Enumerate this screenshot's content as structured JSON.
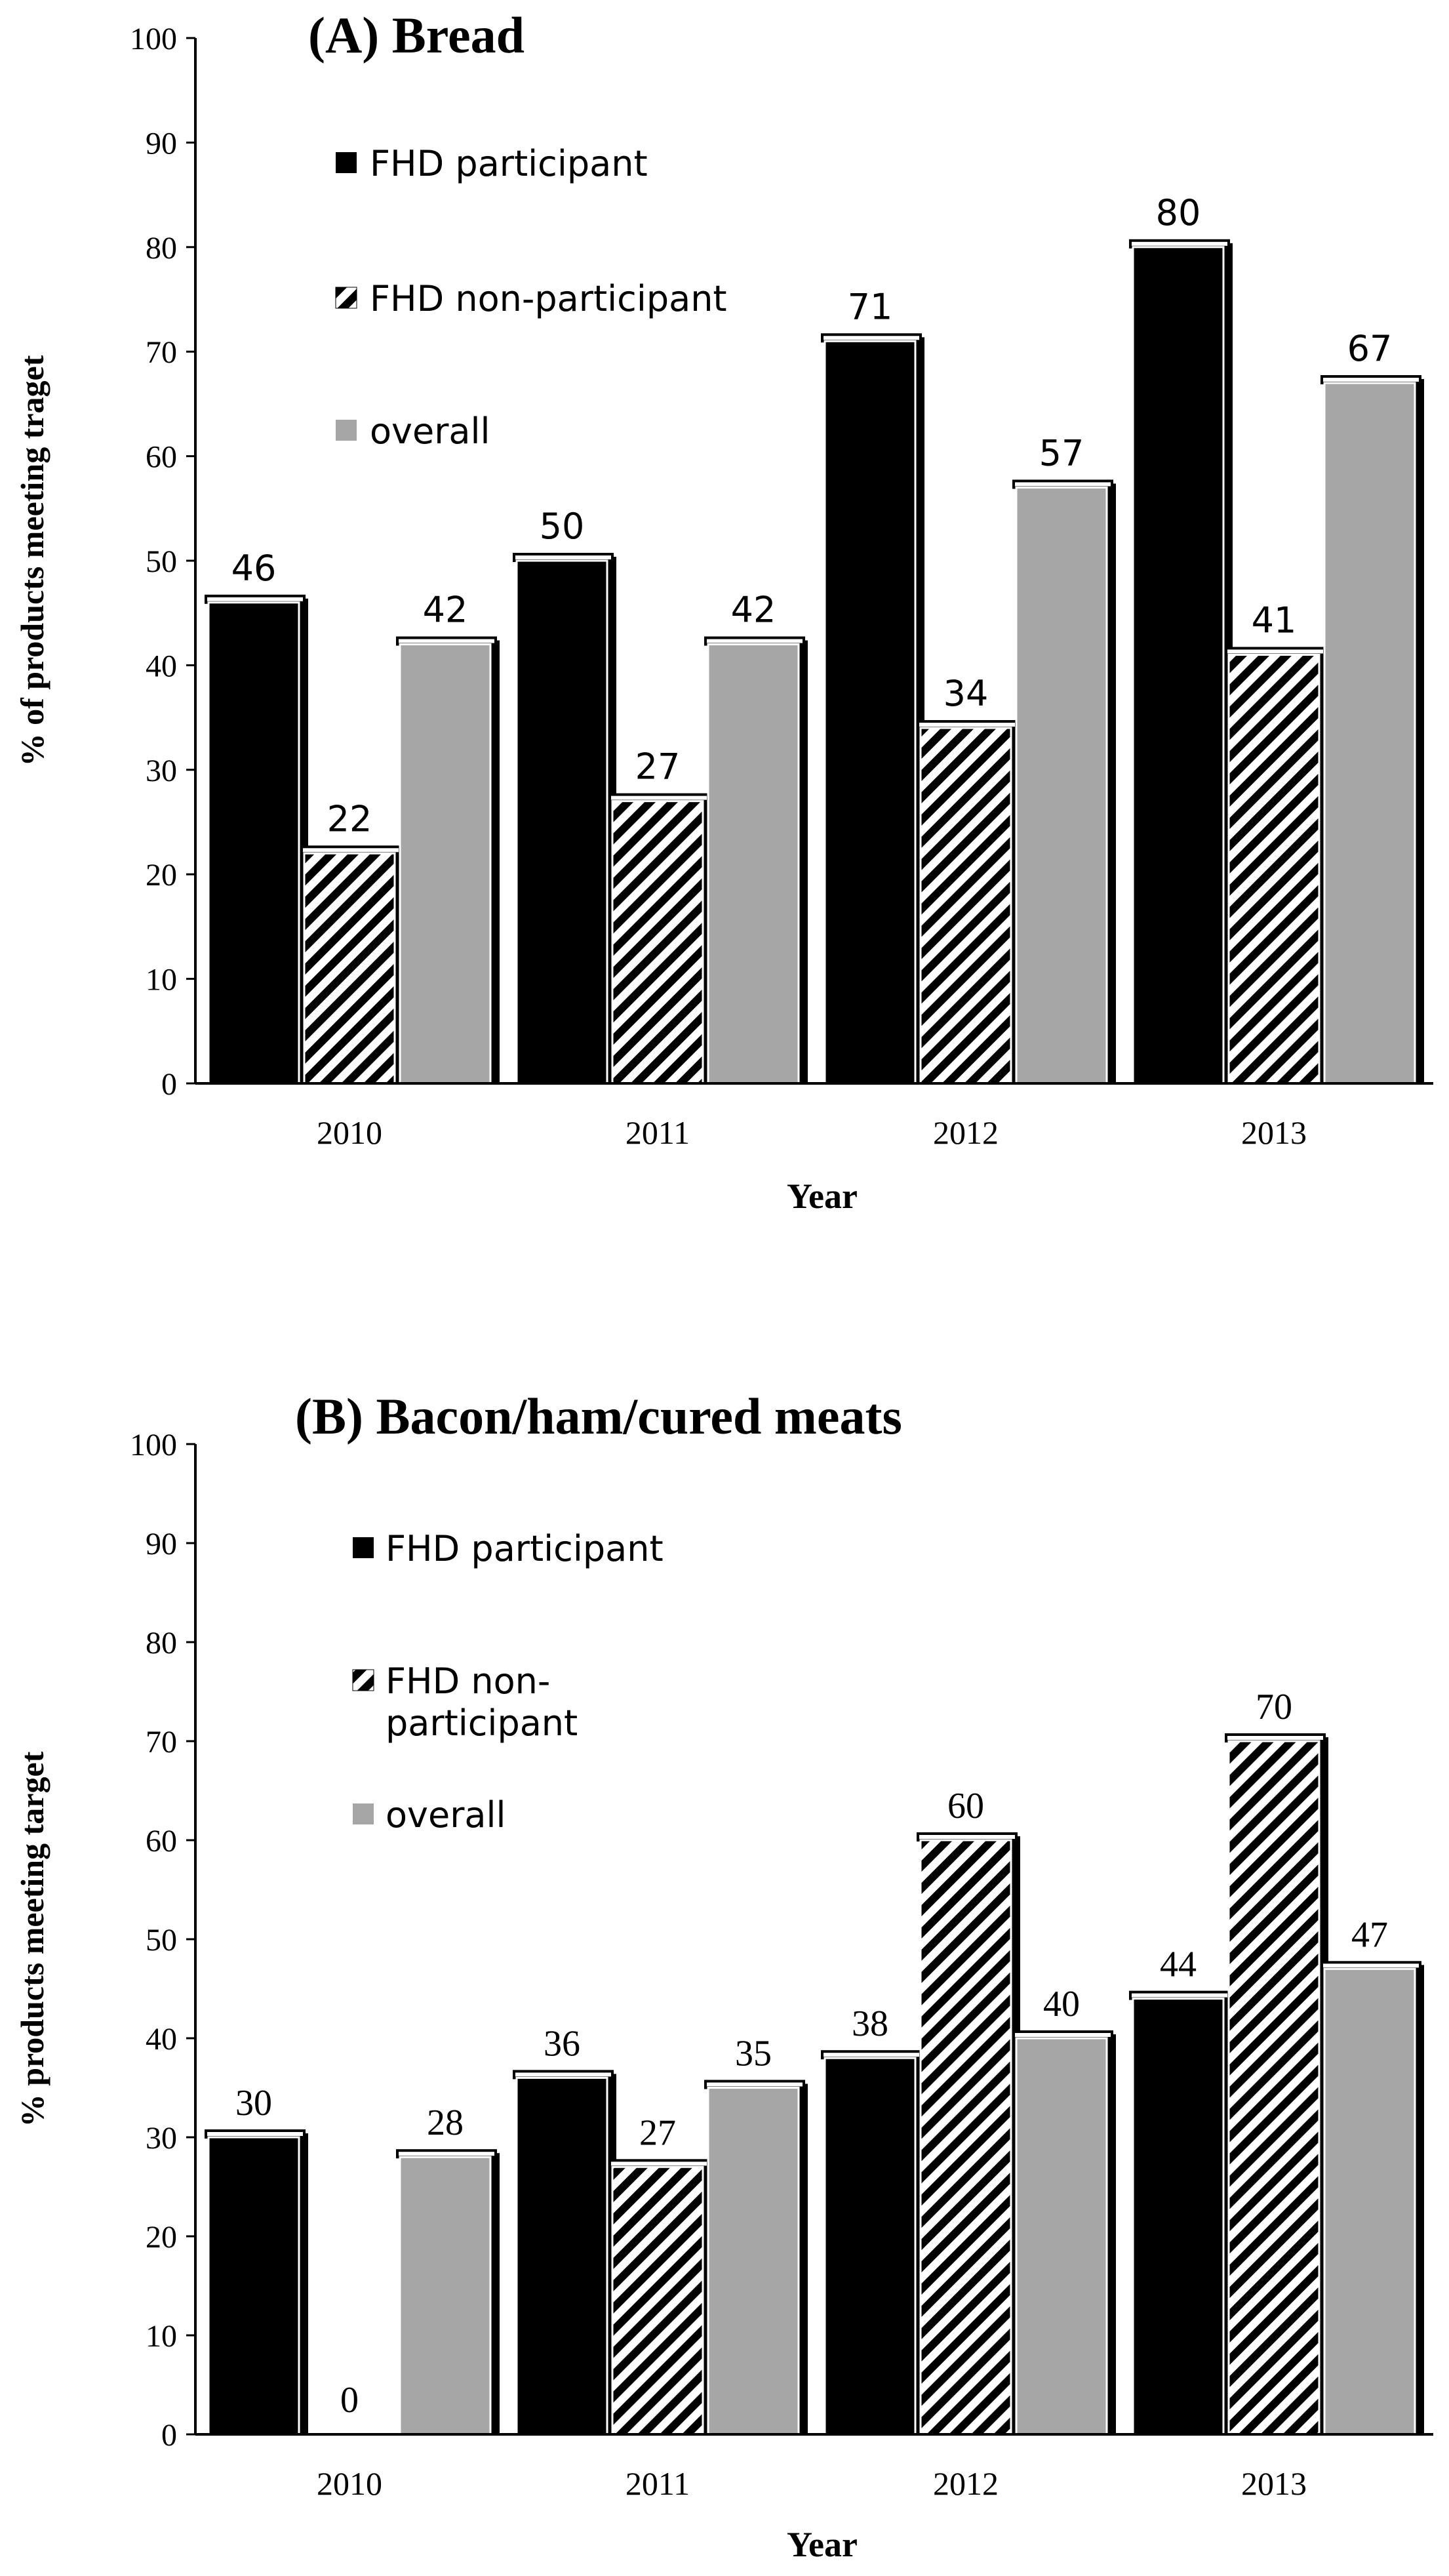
{
  "chart_data": [
    {
      "type": "bar",
      "title": "(A) Bread",
      "xlabel": "Year",
      "ylabel": "% of products meeting traget",
      "ylim": [
        0,
        100
      ],
      "yticks": [
        "0",
        "10",
        "20",
        "30",
        "40",
        "50",
        "60",
        "70",
        "80",
        "90",
        "100"
      ],
      "categories": [
        "2010",
        "2011",
        "2012",
        "2013"
      ],
      "series": [
        {
          "name": "FHD participant",
          "values": [
            46,
            50,
            71,
            80
          ],
          "labels": [
            "46",
            "50",
            "71",
            "80"
          ],
          "color": "#000000",
          "pattern": "solid"
        },
        {
          "name": "FHD non-participant",
          "values": [
            22,
            27,
            34,
            41
          ],
          "labels": [
            "22",
            "27",
            "34",
            "41"
          ],
          "color": "#000000",
          "pattern": "hatch"
        },
        {
          "name": "overall",
          "values": [
            42,
            42,
            57,
            67
          ],
          "labels": [
            "42",
            "42",
            "57",
            "67"
          ],
          "color": "#a6a6a6",
          "pattern": "solid"
        }
      ],
      "grid": false,
      "legend_position": "top-left"
    },
    {
      "type": "bar",
      "title": "(B) Bacon/ham/cured  meats",
      "xlabel": "Year",
      "ylabel": "% products meeting target",
      "ylim": [
        0,
        100
      ],
      "yticks": [
        "0",
        "10",
        "20",
        "30",
        "40",
        "50",
        "60",
        "70",
        "80",
        "90",
        "100"
      ],
      "categories": [
        "2010",
        "2011",
        "2012",
        "2013"
      ],
      "series": [
        {
          "name": "FHD participant",
          "values": [
            30,
            36,
            38,
            44
          ],
          "labels": [
            "30",
            "36",
            "38",
            "44"
          ],
          "color": "#000000",
          "pattern": "solid"
        },
        {
          "name": "FHD non-participant",
          "legend_lines": [
            "FHD non-",
            "participant"
          ],
          "values": [
            0,
            27,
            60,
            70
          ],
          "labels": [
            "0",
            "27",
            "60",
            "70"
          ],
          "color": "#000000",
          "pattern": "hatch"
        },
        {
          "name": "overall",
          "values": [
            28,
            35,
            40,
            47
          ],
          "labels": [
            "28",
            "35",
            "40",
            "47"
          ],
          "color": "#a6a6a6",
          "pattern": "solid"
        }
      ],
      "grid": false,
      "legend_position": "top-left"
    }
  ]
}
